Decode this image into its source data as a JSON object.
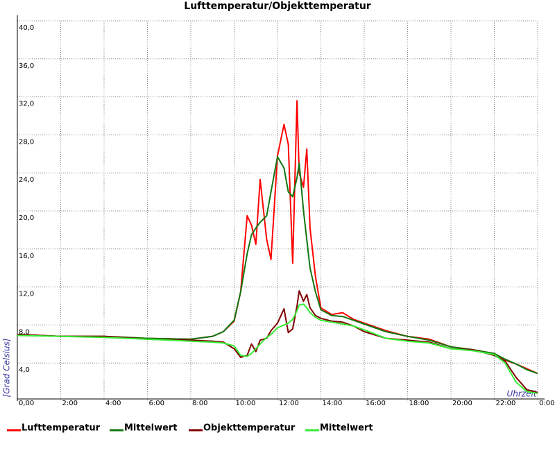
{
  "chart_data": {
    "type": "line",
    "title": "Lufttemperatur/Objekttemperatur",
    "y_label": "[Grad Celsius]",
    "x_label": "Uhrzeit",
    "x": [
      0,
      2,
      4,
      6,
      8,
      9,
      9.5,
      10,
      10.3,
      10.6,
      10.8,
      11,
      11.2,
      11.5,
      11.7,
      12,
      12.3,
      12.5,
      12.7,
      12.9,
      13,
      13.2,
      13.35,
      13.5,
      13.75,
      14,
      14.5,
      15,
      15.5,
      16,
      17,
      18,
      19,
      20,
      21,
      22,
      22.5,
      23,
      23.5,
      24
    ],
    "series": [
      {
        "name": "Lufttemperatur",
        "color": "#ff0000",
        "values": [
          7.0,
          6.8,
          6.8,
          6.6,
          6.5,
          6.8,
          7.3,
          8.4,
          11.5,
          19.5,
          18.5,
          16.5,
          23.3,
          17,
          14.9,
          25.8,
          29.1,
          27,
          14.5,
          31.6,
          24,
          22.5,
          26.5,
          18.2,
          13.1,
          9.8,
          9.1,
          9.3,
          8.6,
          8.2,
          7.4,
          6.8,
          6.5,
          5.7,
          5.4,
          5.0,
          4.3,
          3.9,
          3.4,
          2.9
        ]
      },
      {
        "name": "Mittelwert",
        "color": "#117711",
        "values": [
          7.0,
          6.8,
          6.8,
          6.6,
          6.5,
          6.8,
          7.3,
          8.5,
          11.5,
          15.5,
          17.5,
          18.2,
          18.8,
          19.5,
          22,
          25.7,
          24.5,
          22,
          21.5,
          23.5,
          25,
          20,
          17,
          14,
          11.5,
          9.6,
          9.0,
          8.9,
          8.5,
          8.1,
          7.3,
          6.8,
          6.4,
          5.7,
          5.4,
          5.0,
          4.4,
          3.9,
          3.3,
          2.9
        ]
      },
      {
        "name": "Objekttemperatur",
        "color": "#800000",
        "values": [
          7.0,
          6.8,
          6.8,
          6.5,
          6.4,
          6.3,
          6.2,
          5.5,
          4.6,
          4.8,
          6,
          5.2,
          6.4,
          6.6,
          7.4,
          8.2,
          9.7,
          7.2,
          7.6,
          10.0,
          11.6,
          10.5,
          11.2,
          9.8,
          9.0,
          8.7,
          8.4,
          8.3,
          7.9,
          7.3,
          6.6,
          6.4,
          6.2,
          5.5,
          5.4,
          4.8,
          4.2,
          2.5,
          1.2,
          0.9
        ]
      },
      {
        "name": "Mittelwert",
        "color": "#33ee33",
        "values": [
          6.9,
          6.8,
          6.7,
          6.5,
          6.3,
          6.2,
          6.1,
          5.8,
          4.8,
          4.7,
          5.0,
          5.5,
          6.0,
          6.7,
          7.0,
          7.7,
          8.0,
          8.2,
          8.6,
          9.5,
          10.1,
          10.2,
          9.8,
          9.3,
          8.8,
          8.5,
          8.3,
          8.1,
          7.9,
          7.5,
          6.6,
          6.3,
          6.1,
          5.5,
          5.3,
          4.9,
          4.0,
          2.0,
          1.0,
          0.8
        ]
      }
    ],
    "xlim": [
      0,
      24
    ],
    "xticks": [
      {
        "value": 0,
        "label": "0,00"
      },
      {
        "value": 2,
        "label": "2:00"
      },
      {
        "value": 4,
        "label": "4:00"
      },
      {
        "value": 6,
        "label": "6:00"
      },
      {
        "value": 8,
        "label": "8:00"
      },
      {
        "value": 10,
        "label": "10:00"
      },
      {
        "value": 12,
        "label": "12:00"
      },
      {
        "value": 14,
        "label": "14:00"
      },
      {
        "value": 16,
        "label": "16:00"
      },
      {
        "value": 18,
        "label": "18:00"
      },
      {
        "value": 20,
        "label": "20:00"
      },
      {
        "value": 22,
        "label": "22:00"
      },
      {
        "value": 24,
        "label": "0:00"
      }
    ],
    "ylim": [
      0,
      40
    ],
    "yticks": [
      {
        "value": 4,
        "label": "4,0"
      },
      {
        "value": 8,
        "label": "8,0"
      },
      {
        "value": 12,
        "label": "12,0"
      },
      {
        "value": 16,
        "label": "16,0"
      },
      {
        "value": 20,
        "label": "20,0"
      },
      {
        "value": 24,
        "label": "24,0"
      },
      {
        "value": 28,
        "label": "28,0"
      },
      {
        "value": 32,
        "label": "32,0"
      },
      {
        "value": 36,
        "label": "36,0"
      },
      {
        "value": 40,
        "label": "40,0"
      }
    ],
    "grid": true
  }
}
